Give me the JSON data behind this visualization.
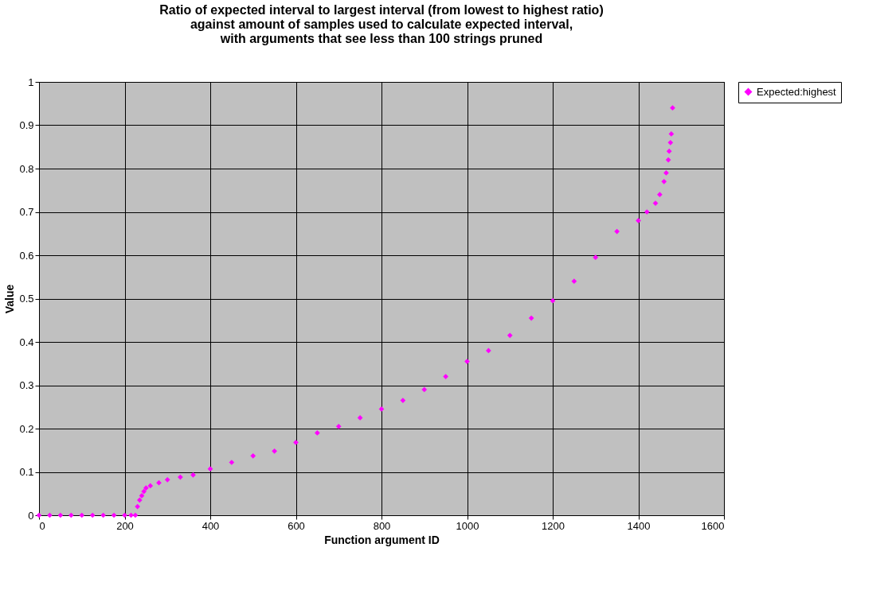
{
  "chart_data": {
    "type": "scatter",
    "title": "Ratio of expected interval to largest interval (from lowest to highest ratio)\nagainst amount of samples used to calculate expected interval,\nwith arguments that see less than 100 strings pruned",
    "xlabel": "Function argument ID",
    "ylabel": "Value",
    "series": [
      {
        "name": "Expected:highest",
        "color": "#ff00ff",
        "x": [
          0,
          25,
          50,
          75,
          100,
          125,
          150,
          175,
          200,
          215,
          225,
          230,
          235,
          240,
          245,
          250,
          260,
          280,
          300,
          330,
          360,
          400,
          450,
          500,
          550,
          600,
          650,
          700,
          750,
          800,
          850,
          900,
          950,
          1000,
          1050,
          1100,
          1150,
          1200,
          1250,
          1300,
          1350,
          1400,
          1420,
          1440,
          1450,
          1460,
          1465,
          1470,
          1472,
          1475,
          1477,
          1480
        ],
        "values": [
          0,
          0,
          0,
          0,
          0,
          0,
          0,
          0,
          0,
          0,
          0,
          0.02,
          0.035,
          0.045,
          0.055,
          0.063,
          0.068,
          0.075,
          0.082,
          0.088,
          0.093,
          0.107,
          0.122,
          0.137,
          0.148,
          0.168,
          0.19,
          0.205,
          0.225,
          0.245,
          0.265,
          0.29,
          0.32,
          0.355,
          0.38,
          0.415,
          0.455,
          0.495,
          0.54,
          0.595,
          0.655,
          0.68,
          0.7,
          0.72,
          0.74,
          0.77,
          0.79,
          0.82,
          0.84,
          0.86,
          0.88,
          0.94
        ]
      }
    ],
    "xlim": [
      0,
      1600
    ],
    "xticks": [
      0,
      200,
      400,
      600,
      800,
      1000,
      1200,
      1400,
      1600
    ],
    "ylim": [
      0,
      1
    ],
    "yticks": [
      0,
      0.1,
      0.2,
      0.3,
      0.4,
      0.5,
      0.6,
      0.7,
      0.8,
      0.9,
      1
    ],
    "grid": true,
    "legend": "right",
    "marker": "diamond"
  }
}
